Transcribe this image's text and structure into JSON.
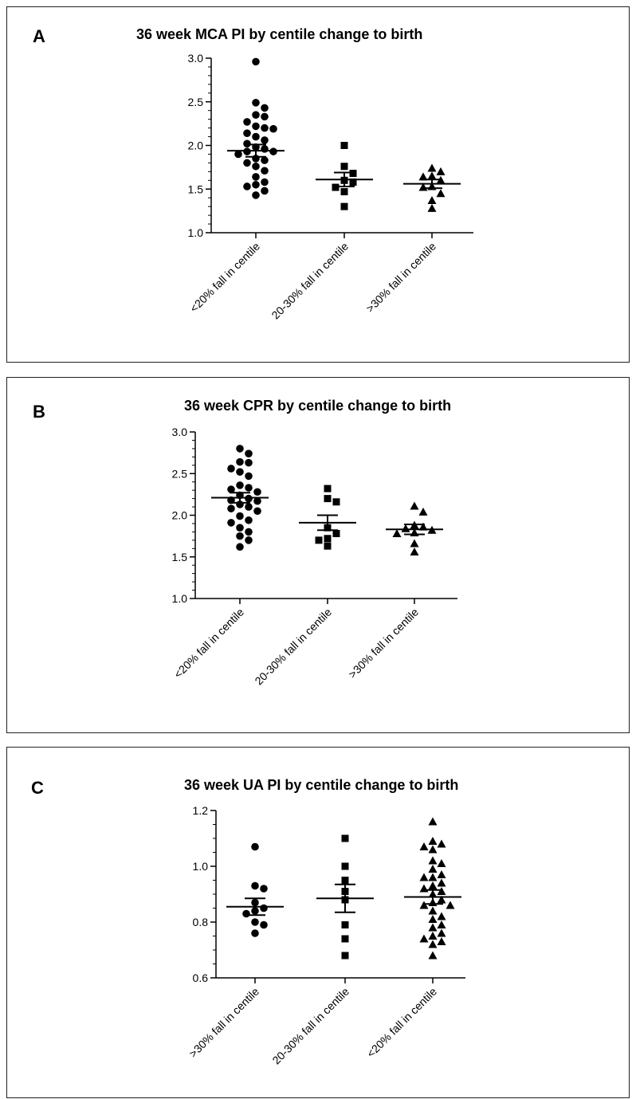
{
  "chart_data": [
    {
      "panel": "A",
      "type": "scatter",
      "title": "36 week MCA PI by centile change to birth",
      "categories": [
        "<20% fall in centile",
        "20-30% fall in centile",
        ">30% fall in centile"
      ],
      "ylim": [
        1.0,
        3.0
      ],
      "yticks": [
        "1.0",
        "1.5",
        "2.0",
        "2.5",
        "3.0"
      ],
      "series": [
        {
          "category": "<20% fall in centile",
          "marker": "circle",
          "mean": 1.94,
          "sem": 0.07,
          "values": [
            2.96,
            2.49,
            2.43,
            2.35,
            2.33,
            2.27,
            2.22,
            2.2,
            2.19,
            2.14,
            2.1,
            2.06,
            2.02,
            1.98,
            1.96,
            1.93,
            1.93,
            1.9,
            1.85,
            1.83,
            1.8,
            1.76,
            1.71,
            1.64,
            1.58,
            1.55,
            1.53,
            1.48,
            1.43
          ]
        },
        {
          "category": "20-30% fall in centile",
          "marker": "square",
          "mean": 1.61,
          "sem": 0.08,
          "values": [
            2.0,
            1.76,
            1.68,
            1.6,
            1.58,
            1.52,
            1.47,
            1.3
          ]
        },
        {
          "category": ">30% fall in centile",
          "marker": "triangle",
          "mean": 1.56,
          "sem": 0.05,
          "values": [
            1.74,
            1.7,
            1.65,
            1.64,
            1.6,
            1.53,
            1.52,
            1.45,
            1.37,
            1.28
          ]
        }
      ]
    },
    {
      "panel": "B",
      "type": "scatter",
      "title": "36 week CPR by centile change to birth",
      "categories": [
        "<20% fall in centile",
        "20-30% fall in centile",
        ">30% fall in centile"
      ],
      "ylim": [
        1.0,
        3.0
      ],
      "yticks": [
        "1.0",
        "1.5",
        "2.0",
        "2.5",
        "3.0"
      ],
      "series": [
        {
          "category": "<20% fall in centile",
          "marker": "circle",
          "mean": 2.21,
          "sem": 0.06,
          "values": [
            2.8,
            2.74,
            2.64,
            2.63,
            2.56,
            2.52,
            2.47,
            2.36,
            2.33,
            2.31,
            2.28,
            2.24,
            2.2,
            2.18,
            2.17,
            2.13,
            2.1,
            2.08,
            2.05,
            1.99,
            1.94,
            1.91,
            1.85,
            1.8,
            1.75,
            1.7,
            1.62
          ]
        },
        {
          "category": "20-30% fall in centile",
          "marker": "square",
          "mean": 1.91,
          "sem": 0.09,
          "values": [
            2.32,
            2.2,
            2.16,
            1.85,
            1.78,
            1.72,
            1.7,
            1.63
          ]
        },
        {
          "category": ">30% fall in centile",
          "marker": "triangle",
          "mean": 1.83,
          "sem": 0.06,
          "values": [
            2.11,
            2.04,
            1.88,
            1.86,
            1.84,
            1.82,
            1.79,
            1.78,
            1.66,
            1.56
          ]
        }
      ]
    },
    {
      "panel": "C",
      "type": "scatter",
      "title": "36 week UA PI by centile change to birth",
      "categories": [
        ">30% fall in centile",
        "20-30% fall in centile",
        "<20% fall in centile"
      ],
      "ylim": [
        0.6,
        1.2
      ],
      "yticks": [
        "0.6",
        "0.8",
        "1.0",
        "1.2"
      ],
      "series": [
        {
          "category": ">30% fall in centile",
          "marker": "circle",
          "mean": 0.855,
          "sem": 0.03,
          "values": [
            1.07,
            0.93,
            0.92,
            0.87,
            0.85,
            0.84,
            0.83,
            0.8,
            0.79,
            0.76
          ]
        },
        {
          "category": "20-30% fall in centile",
          "marker": "square",
          "mean": 0.885,
          "sem": 0.05,
          "values": [
            1.1,
            1.0,
            0.95,
            0.91,
            0.88,
            0.79,
            0.74,
            0.68
          ]
        },
        {
          "category": "<20% fall in centile",
          "marker": "triangle",
          "mean": 0.89,
          "sem": 0.025,
          "values": [
            1.16,
            1.09,
            1.08,
            1.07,
            1.06,
            1.02,
            1.01,
            0.99,
            0.97,
            0.96,
            0.96,
            0.94,
            0.93,
            0.92,
            0.91,
            0.9,
            0.88,
            0.87,
            0.86,
            0.86,
            0.84,
            0.82,
            0.81,
            0.79,
            0.78,
            0.76,
            0.75,
            0.74,
            0.73,
            0.72,
            0.68
          ]
        }
      ]
    }
  ]
}
